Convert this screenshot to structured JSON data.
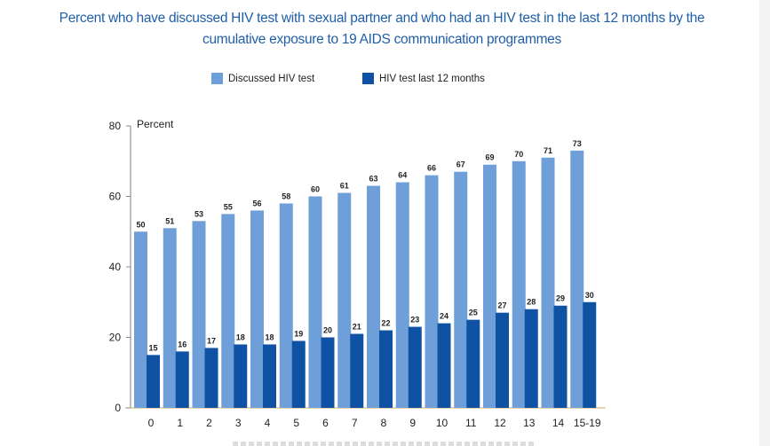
{
  "chart_data": {
    "type": "bar",
    "title": "Percent who have discussed HIV test with sexual partner and who had an HIV test in the last 12 months by the cumulative exposure to 19 AIDS communication programmes",
    "title_lines": [
      "Percent who have discussed HIV test with sexual partner and who had an HIV test in the last 12 months by the",
      "cumulative exposure to 19 AIDS communication programmes"
    ],
    "xlabel": "",
    "ylabel": "Percent",
    "ylim": [
      0,
      80
    ],
    "yticks": [
      0,
      20,
      40,
      60,
      80
    ],
    "grid": false,
    "legend_position": "top-center",
    "categories": [
      "0",
      "1",
      "2",
      "3",
      "4",
      "5",
      "6",
      "7",
      "8",
      "9",
      "10",
      "11",
      "12",
      "13",
      "14",
      "15-19"
    ],
    "series": [
      {
        "name": "Discussed HIV test",
        "color": "#6f9fd8",
        "values": [
          50,
          51,
          53,
          55,
          56,
          58,
          60,
          61,
          63,
          64,
          66,
          67,
          69,
          70,
          71,
          73
        ]
      },
      {
        "name": "HIV test last 12 months",
        "color": "#0f52a3",
        "values": [
          15,
          16,
          17,
          18,
          18,
          19,
          20,
          21,
          22,
          23,
          24,
          25,
          27,
          28,
          29,
          30
        ]
      }
    ]
  }
}
